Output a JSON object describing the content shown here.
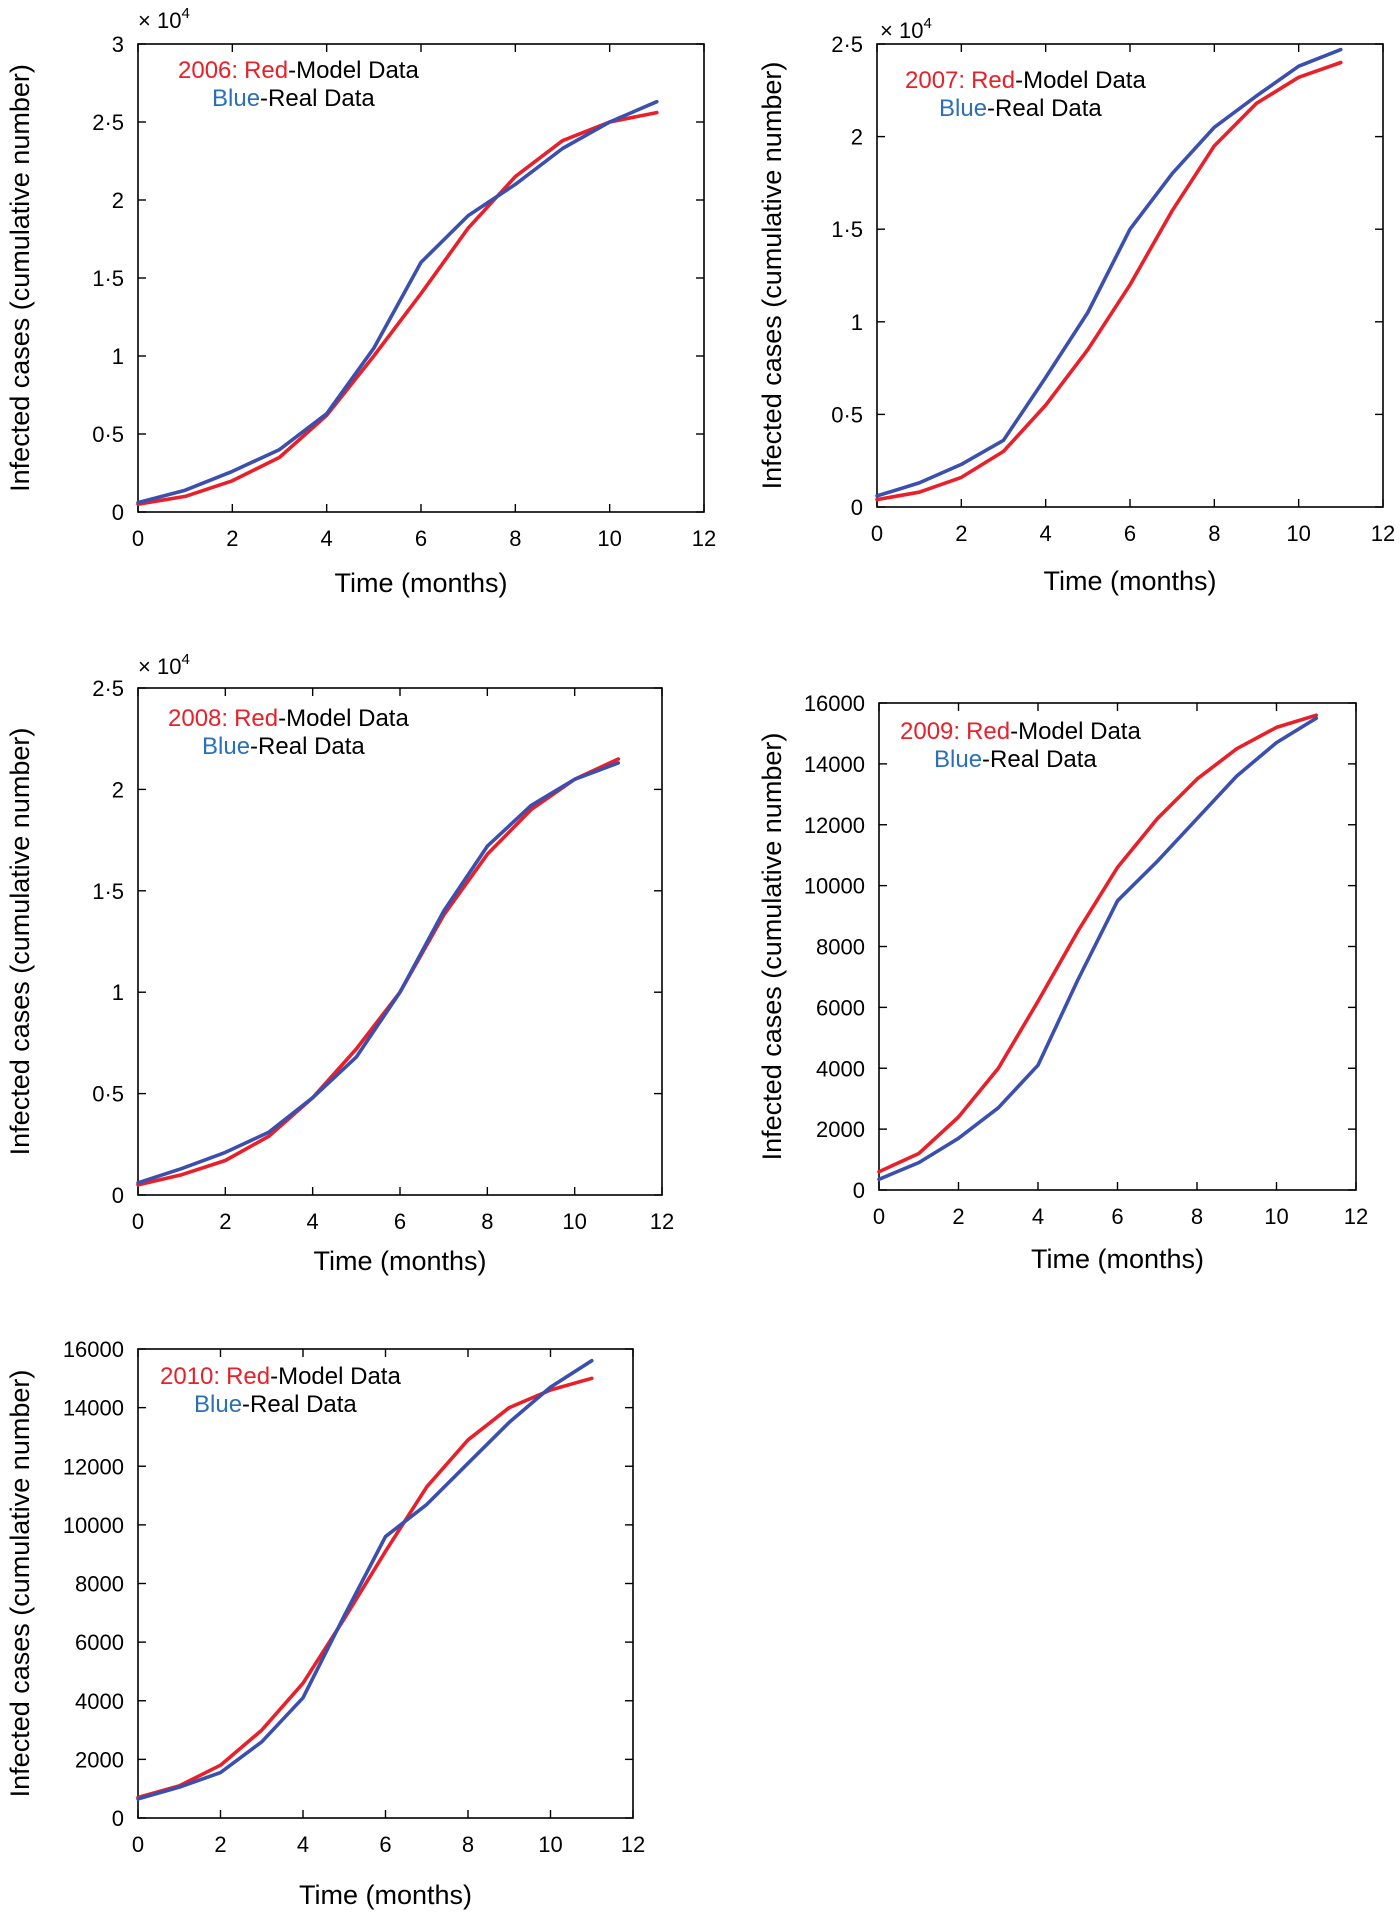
{
  "chart_data": [
    {
      "type": "line",
      "legend_year": "2006:",
      "legend_red_word": "Red",
      "legend_red_suffix": "-Model Data",
      "legend_blue_word": "Blue",
      "legend_blue_suffix": "-Real Data",
      "multiplier": "× 10",
      "multiplier_exp": "4",
      "xlabel": "Time (months)",
      "ylabel": "Infected cases (cumulative number)",
      "xlim": [
        0,
        12
      ],
      "ylim": [
        0,
        3
      ],
      "xticks": [
        0,
        2,
        4,
        6,
        8,
        10,
        12
      ],
      "xtick_labels": [
        "0",
        "2",
        "4",
        "6",
        "8",
        "10",
        "12"
      ],
      "yticks": [
        0,
        0.5,
        1,
        1.5,
        2,
        2.5,
        3
      ],
      "ytick_labels": [
        "0",
        "0·5",
        "1",
        "1·5",
        "2",
        "2·5",
        "3"
      ],
      "colors": {
        "red": "#e8202a",
        "blue": "#3b4fae",
        "red_text": "#e8202a",
        "blue_text": "#2a6fb8"
      },
      "series": [
        {
          "name": "Model Data",
          "color": "red",
          "x": [
            0,
            1,
            2,
            3,
            4,
            5,
            6,
            7,
            8,
            9,
            10,
            11
          ],
          "y": [
            0.05,
            0.1,
            0.2,
            0.35,
            0.62,
            1.0,
            1.4,
            1.82,
            2.15,
            2.38,
            2.5,
            2.56
          ]
        },
        {
          "name": "Real Data",
          "color": "blue",
          "x": [
            0,
            1,
            2,
            3,
            4,
            5,
            6,
            7,
            8,
            9,
            10,
            11
          ],
          "y": [
            0.06,
            0.14,
            0.26,
            0.4,
            0.63,
            1.05,
            1.6,
            1.9,
            2.1,
            2.33,
            2.5,
            2.63
          ]
        }
      ]
    },
    {
      "type": "line",
      "legend_year": "2007:",
      "legend_red_word": "Red",
      "legend_red_suffix": "-Model Data",
      "legend_blue_word": "Blue",
      "legend_blue_suffix": "-Real Data",
      "multiplier": "× 10",
      "multiplier_exp": "4",
      "xlabel": "Time (months)",
      "ylabel": "Infected cases (cumulative number)",
      "xlim": [
        0,
        12
      ],
      "ylim": [
        0,
        2.5
      ],
      "xticks": [
        0,
        2,
        4,
        6,
        8,
        10,
        12
      ],
      "xtick_labels": [
        "0",
        "2",
        "4",
        "6",
        "8",
        "10",
        "12"
      ],
      "yticks": [
        0,
        0.5,
        1,
        1.5,
        2,
        2.5
      ],
      "ytick_labels": [
        "0",
        "0·5",
        "1",
        "1·5",
        "2",
        "2·5"
      ],
      "colors": {
        "red": "#e8202a",
        "blue": "#3b4fae",
        "red_text": "#e8202a",
        "blue_text": "#2a6fb8"
      },
      "series": [
        {
          "name": "Model Data",
          "color": "red",
          "x": [
            0,
            1,
            2,
            3,
            4,
            5,
            6,
            7,
            8,
            9,
            10,
            11
          ],
          "y": [
            0.04,
            0.08,
            0.16,
            0.3,
            0.55,
            0.85,
            1.2,
            1.6,
            1.95,
            2.18,
            2.32,
            2.4
          ]
        },
        {
          "name": "Real Data",
          "color": "blue",
          "x": [
            0,
            1,
            2,
            3,
            4,
            5,
            6,
            7,
            8,
            9,
            10,
            11
          ],
          "y": [
            0.06,
            0.13,
            0.23,
            0.36,
            0.7,
            1.05,
            1.5,
            1.8,
            2.05,
            2.22,
            2.38,
            2.47
          ]
        }
      ]
    },
    {
      "type": "line",
      "legend_year": "2008:",
      "legend_red_word": "Red",
      "legend_red_suffix": "-Model Data",
      "legend_blue_word": "Blue",
      "legend_blue_suffix": "-Real Data",
      "multiplier": "× 10",
      "multiplier_exp": "4",
      "xlabel": "Time (months)",
      "ylabel": "Infected cases (cumulative number)",
      "xlim": [
        0,
        12
      ],
      "ylim": [
        0,
        2.5
      ],
      "xticks": [
        0,
        2,
        4,
        6,
        8,
        10,
        12
      ],
      "xtick_labels": [
        "0",
        "2",
        "4",
        "6",
        "8",
        "10",
        "12"
      ],
      "yticks": [
        0,
        0.5,
        1,
        1.5,
        2,
        2.5
      ],
      "ytick_labels": [
        "0",
        "0·5",
        "1",
        "1·5",
        "2",
        "2·5"
      ],
      "colors": {
        "red": "#e8202a",
        "blue": "#3b4fae",
        "red_text": "#e8202a",
        "blue_text": "#2a6fb8"
      },
      "series": [
        {
          "name": "Model Data",
          "color": "red",
          "x": [
            0,
            1,
            2,
            3,
            4,
            5,
            6,
            7,
            8,
            9,
            10,
            11
          ],
          "y": [
            0.05,
            0.1,
            0.17,
            0.29,
            0.48,
            0.72,
            1.0,
            1.38,
            1.68,
            1.9,
            2.05,
            2.15
          ]
        },
        {
          "name": "Real Data",
          "color": "blue",
          "x": [
            0,
            1,
            2,
            3,
            4,
            5,
            6,
            7,
            8,
            9,
            10,
            11
          ],
          "y": [
            0.06,
            0.13,
            0.21,
            0.31,
            0.48,
            0.68,
            1.0,
            1.4,
            1.72,
            1.92,
            2.05,
            2.13
          ]
        }
      ]
    },
    {
      "type": "line",
      "legend_year": "2009:",
      "legend_red_word": "Red",
      "legend_red_suffix": "-Model Data",
      "legend_blue_word": "Blue",
      "legend_blue_suffix": "-Real Data",
      "multiplier": "",
      "multiplier_exp": "",
      "xlabel": "Time (months)",
      "ylabel": "Infected cases (cumulative number)",
      "xlim": [
        0,
        12
      ],
      "ylim": [
        0,
        16000
      ],
      "xticks": [
        0,
        2,
        4,
        6,
        8,
        10,
        12
      ],
      "xtick_labels": [
        "0",
        "2",
        "4",
        "6",
        "8",
        "10",
        "12"
      ],
      "yticks": [
        0,
        2000,
        4000,
        6000,
        8000,
        10000,
        12000,
        14000,
        16000
      ],
      "ytick_labels": [
        "0",
        "2000",
        "4000",
        "6000",
        "8000",
        "10000",
        "12000",
        "14000",
        "16000"
      ],
      "colors": {
        "red": "#e8202a",
        "blue": "#3b4fae",
        "red_text": "#e8202a",
        "blue_text": "#2a6fb8"
      },
      "series": [
        {
          "name": "Model Data",
          "color": "red",
          "x": [
            0,
            1,
            2,
            3,
            4,
            5,
            6,
            7,
            8,
            9,
            10,
            11
          ],
          "y": [
            600,
            1200,
            2400,
            4000,
            6200,
            8500,
            10600,
            12200,
            13500,
            14500,
            15200,
            15600
          ]
        },
        {
          "name": "Real Data",
          "color": "blue",
          "x": [
            0,
            1,
            2,
            3,
            4,
            5,
            6,
            7,
            8,
            9,
            10,
            11
          ],
          "y": [
            350,
            900,
            1700,
            2700,
            4100,
            6900,
            9500,
            10800,
            12200,
            13600,
            14700,
            15500
          ]
        }
      ]
    },
    {
      "type": "line",
      "legend_year": "2010:",
      "legend_red_word": "Red",
      "legend_red_suffix": "-Model Data",
      "legend_blue_word": "Blue",
      "legend_blue_suffix": "-Real Data",
      "multiplier": "",
      "multiplier_exp": "",
      "xlabel": "Time (months)",
      "ylabel": "Infected cases (cumulative number)",
      "xlim": [
        0,
        12
      ],
      "ylim": [
        0,
        16000
      ],
      "xticks": [
        0,
        2,
        4,
        6,
        8,
        10,
        12
      ],
      "xtick_labels": [
        "0",
        "2",
        "4",
        "6",
        "8",
        "10",
        "12"
      ],
      "yticks": [
        0,
        2000,
        4000,
        6000,
        8000,
        10000,
        12000,
        14000,
        16000
      ],
      "ytick_labels": [
        "0",
        "2000",
        "4000",
        "6000",
        "8000",
        "10000",
        "12000",
        "14000",
        "16000"
      ],
      "colors": {
        "red": "#e8202a",
        "blue": "#3b4fae",
        "red_text": "#e8202a",
        "blue_text": "#2a6fb8"
      },
      "series": [
        {
          "name": "Model Data",
          "color": "red",
          "x": [
            0,
            1,
            2,
            3,
            4,
            5,
            6,
            7,
            8,
            9,
            10,
            11
          ],
          "y": [
            700,
            1100,
            1800,
            3000,
            4600,
            6800,
            9100,
            11300,
            12900,
            14000,
            14600,
            15000
          ]
        },
        {
          "name": "Real Data",
          "color": "blue",
          "x": [
            0,
            1,
            2,
            3,
            4,
            5,
            6,
            7,
            8,
            9,
            10,
            11
          ],
          "y": [
            650,
            1050,
            1550,
            2600,
            4100,
            6900,
            9600,
            10700,
            12100,
            13500,
            14700,
            15600
          ]
        }
      ]
    }
  ]
}
